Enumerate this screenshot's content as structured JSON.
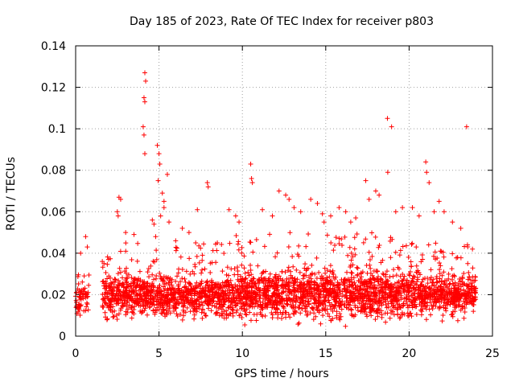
{
  "chart_data": {
    "type": "scatter",
    "title": "Day 185 of 2023, Rate Of TEC Index for receiver p803",
    "xlabel": "GPS time / hours",
    "ylabel": "ROTI / TECUs",
    "xlim": [
      0,
      25
    ],
    "ylim": [
      0,
      0.14
    ],
    "xticks": [
      0,
      5,
      10,
      15,
      20,
      25
    ],
    "xtick_labels": [
      "0",
      "5",
      "10",
      "15",
      "20",
      "25"
    ],
    "yticks": [
      0,
      0.02,
      0.04,
      0.06,
      0.08,
      0.1,
      0.12,
      0.14
    ],
    "ytick_labels": [
      "0",
      "0.02",
      "0.04",
      "0.06",
      "0.08",
      "0.1",
      "0.12",
      "0.14"
    ],
    "grid": true,
    "marker": "+",
    "series": [
      {
        "name": "ROTI",
        "color": "#ff0000",
        "x": [
          4.15,
          4.2,
          4.1,
          4.15,
          4.05,
          4.1,
          4.15,
          4.9,
          5.0,
          5.05,
          4.95,
          5.5,
          5.2,
          5.3,
          4.6,
          4.7,
          3.5,
          3.0,
          2.6,
          2.7,
          2.5,
          2.55,
          4.8,
          5.1,
          5.3,
          5.6,
          6.0,
          7.2,
          7.9,
          7.95,
          7.3,
          6.4,
          6.8,
          9.2,
          9.6,
          9.8,
          10.5,
          10.55,
          10.6,
          11.2,
          11.8,
          12.2,
          12.6,
          12.8,
          13.1,
          13.5,
          14.1,
          14.5,
          14.8,
          14.9,
          15.3,
          15.8,
          16.2,
          16.5,
          16.8,
          17.4,
          17.6,
          18.0,
          18.2,
          18.7,
          18.72,
          18.95,
          19.2,
          19.6,
          20.2,
          20.6,
          21.0,
          21.05,
          21.2,
          21.5,
          21.8,
          22.1,
          22.6,
          23.1,
          23.45,
          23.5,
          23.8,
          0.3,
          0.6,
          0.7,
          1.6,
          1.7
        ],
        "y": [
          0.127,
          0.123,
          0.115,
          0.113,
          0.101,
          0.097,
          0.088,
          0.092,
          0.088,
          0.083,
          0.075,
          0.078,
          0.069,
          0.065,
          0.056,
          0.054,
          0.049,
          0.05,
          0.067,
          0.066,
          0.06,
          0.058,
          0.048,
          0.058,
          0.062,
          0.055,
          0.046,
          0.045,
          0.074,
          0.072,
          0.061,
          0.052,
          0.05,
          0.061,
          0.058,
          0.055,
          0.083,
          0.076,
          0.074,
          0.061,
          0.058,
          0.07,
          0.068,
          0.066,
          0.062,
          0.06,
          0.066,
          0.064,
          0.059,
          0.055,
          0.058,
          0.062,
          0.06,
          0.055,
          0.057,
          0.075,
          0.066,
          0.07,
          0.068,
          0.105,
          0.079,
          0.101,
          0.06,
          0.062,
          0.062,
          0.058,
          0.084,
          0.079,
          0.074,
          0.06,
          0.065,
          0.06,
          0.055,
          0.052,
          0.101,
          0.044,
          0.042,
          0.04,
          0.048,
          0.043,
          0.036,
          0.035
        ],
        "bulk_segments": [
          {
            "x_range": [
              0.0,
              0.8
            ],
            "y_center": 0.018,
            "y_spread": 0.012,
            "y_floor": 0.006,
            "y_cap": 0.034,
            "density": 75
          },
          {
            "x_range": [
              1.6,
              4.0
            ],
            "y_center": 0.02,
            "y_spread": 0.014,
            "y_floor": 0.007,
            "y_cap": 0.045,
            "density": 130
          },
          {
            "x_range": [
              4.0,
              9.0
            ],
            "y_center": 0.019,
            "y_spread": 0.013,
            "y_floor": 0.005,
            "y_cap": 0.045,
            "density": 130
          },
          {
            "x_range": [
              9.0,
              14.0
            ],
            "y_center": 0.02,
            "y_spread": 0.016,
            "y_floor": 0.004,
            "y_cap": 0.05,
            "density": 140
          },
          {
            "x_range": [
              14.0,
              19.5
            ],
            "y_center": 0.02,
            "y_spread": 0.016,
            "y_floor": 0.004,
            "y_cap": 0.05,
            "density": 140
          },
          {
            "x_range": [
              19.5,
              24.0
            ],
            "y_center": 0.02,
            "y_spread": 0.014,
            "y_floor": 0.004,
            "y_cap": 0.045,
            "density": 130
          }
        ]
      }
    ]
  }
}
